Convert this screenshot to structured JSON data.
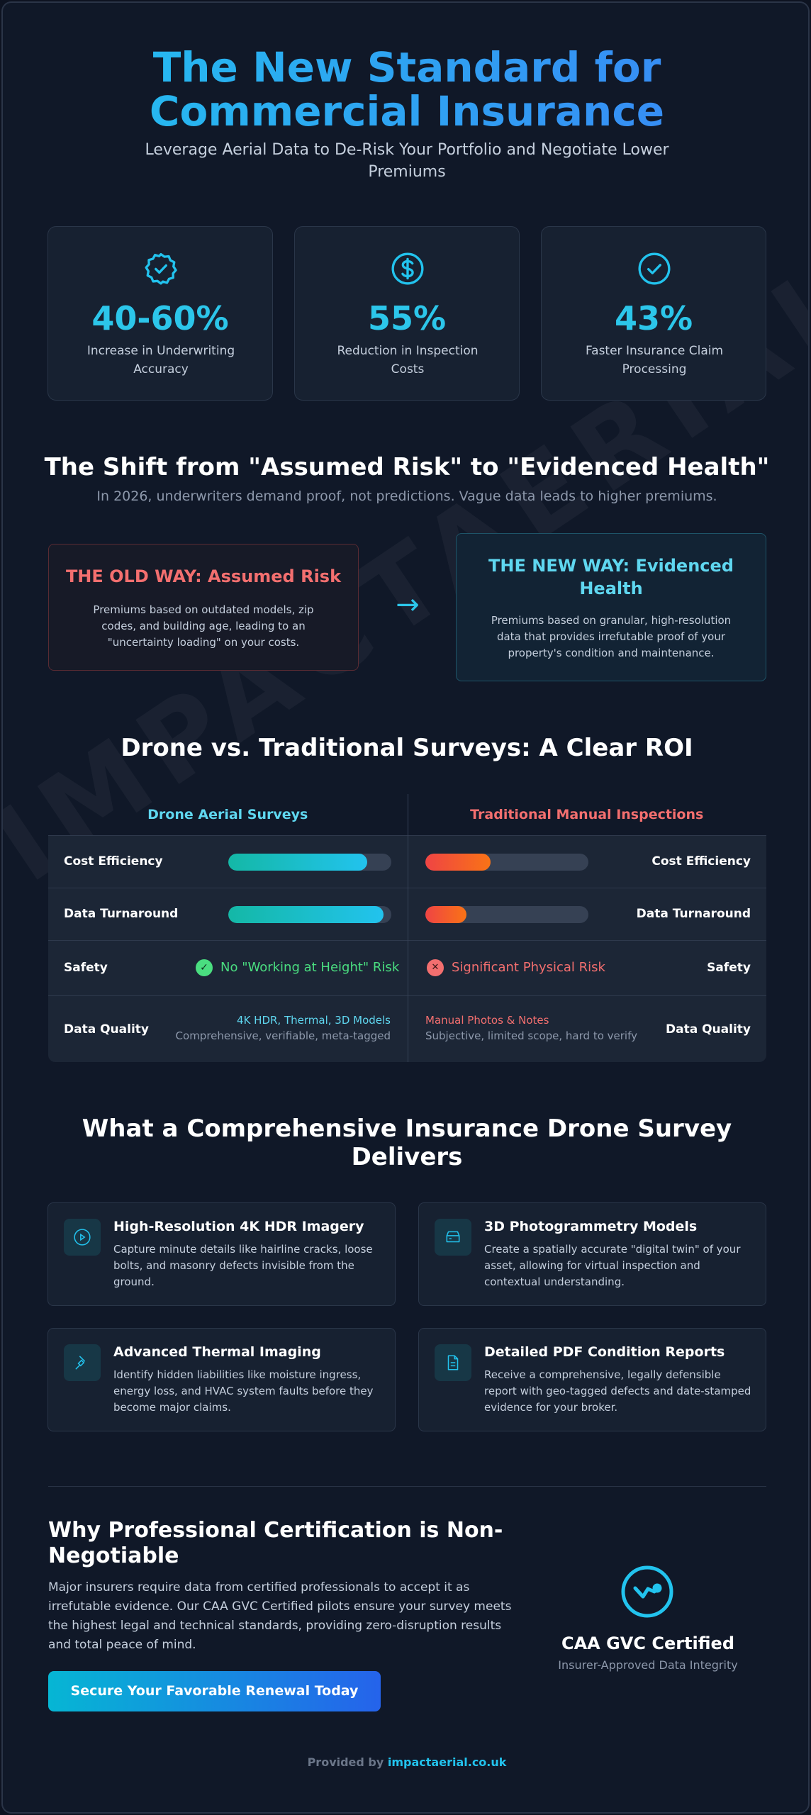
{
  "hero": {
    "title_line1": "The New Standard for",
    "title_line2": "Commercial Insurance",
    "subtitle": "Leverage Aerial Data to De-Risk Your Portfolio and Negotiate Lower Premiums"
  },
  "stats": [
    {
      "icon": "badge-check-icon",
      "value": "40-60%",
      "label": "Increase in Underwriting Accuracy"
    },
    {
      "icon": "dollar-circle-icon",
      "value": "55%",
      "label": "Reduction in Inspection Costs"
    },
    {
      "icon": "check-circle-icon",
      "value": "43%",
      "label": "Faster Insurance Claim Processing"
    }
  ],
  "shift": {
    "title": "The Shift from \"Assumed Risk\" to \"Evidenced Health\"",
    "subtitle": "In 2026, underwriters demand proof, not predictions. Vague data leads to higher premiums.",
    "old_title": "THE OLD WAY: Assumed Risk",
    "old_body": "Premiums based on outdated models, zip codes, and building age, leading to an \"uncertainty loading\" on your costs.",
    "new_title": "THE NEW WAY: Evidenced Health",
    "new_body": "Premiums based on granular, high-resolution data that provides irrefutable proof of your property's condition and maintenance.",
    "arrow": "→"
  },
  "roi": {
    "title": "Drone vs. Traditional Surveys: A Clear ROI",
    "left_header": "Drone Aerial Surveys",
    "right_header": "Traditional Manual Inspections",
    "rows": {
      "cost": {
        "label": "Cost Efficiency",
        "drone": 0.85,
        "traditional": 0.4
      },
      "turnaround": {
        "label": "Data Turnaround",
        "drone": 0.95,
        "traditional": 0.25
      },
      "safety": {
        "label": "Safety",
        "drone_text": "No \"Working at Height\" Risk",
        "traditional_text": "Significant Physical Risk",
        "check": "✓",
        "cross": "✕"
      },
      "quality": {
        "label": "Data Quality",
        "drone_main": "4K HDR, Thermal, 3D Models",
        "drone_sub": "Comprehensive, verifiable, meta-tagged",
        "traditional_main": "Manual Photos & Notes",
        "traditional_sub": "Subjective, limited scope, hard to verify"
      }
    },
    "colors": {
      "good": "#22c3ee",
      "bad": "#ef4444",
      "safe": "#4ade80"
    }
  },
  "features": {
    "title_line1": "What a Comprehensive Insurance Drone Survey",
    "title_line2": "Delivers",
    "items": [
      {
        "icon": "play-circle-icon",
        "title": "High-Resolution 4K HDR Imagery",
        "body": "Capture minute details like hairline cracks, loose bolts, and masonry defects invisible from the ground."
      },
      {
        "icon": "cube-icon",
        "title": "3D Photogrammetry Models",
        "body": "Create a spatially accurate \"digital twin\" of your asset, allowing for virtual inspection and contextual understanding."
      },
      {
        "icon": "thermometer-icon",
        "title": "Advanced Thermal Imaging",
        "body": "Identify hidden liabilities like moisture ingress, energy loss, and HVAC system faults before they become major claims."
      },
      {
        "icon": "document-icon",
        "title": "Detailed PDF Condition Reports",
        "body": "Receive a comprehensive, legally defensible report with geo-tagged defects and date-stamped evidence for your broker."
      }
    ]
  },
  "certification": {
    "title": "Why Professional Certification is Non-Negotiable",
    "body": "Major insurers require data from certified professionals to accept it as irrefutable evidence. Our CAA GVC Certified pilots ensure your survey meets the highest legal and technical standards, providing zero-disruption results and total peace of mind.",
    "cta": "Secure Your Favorable Renewal Today",
    "badge_title": "CAA GVC Certified",
    "badge_sub": "Insurer-Approved Data Integrity"
  },
  "footer": {
    "prefix": "Provided by",
    "link": "impactaerial.co.uk"
  },
  "watermark": "IMPACTAERIAL.CO.UK"
}
